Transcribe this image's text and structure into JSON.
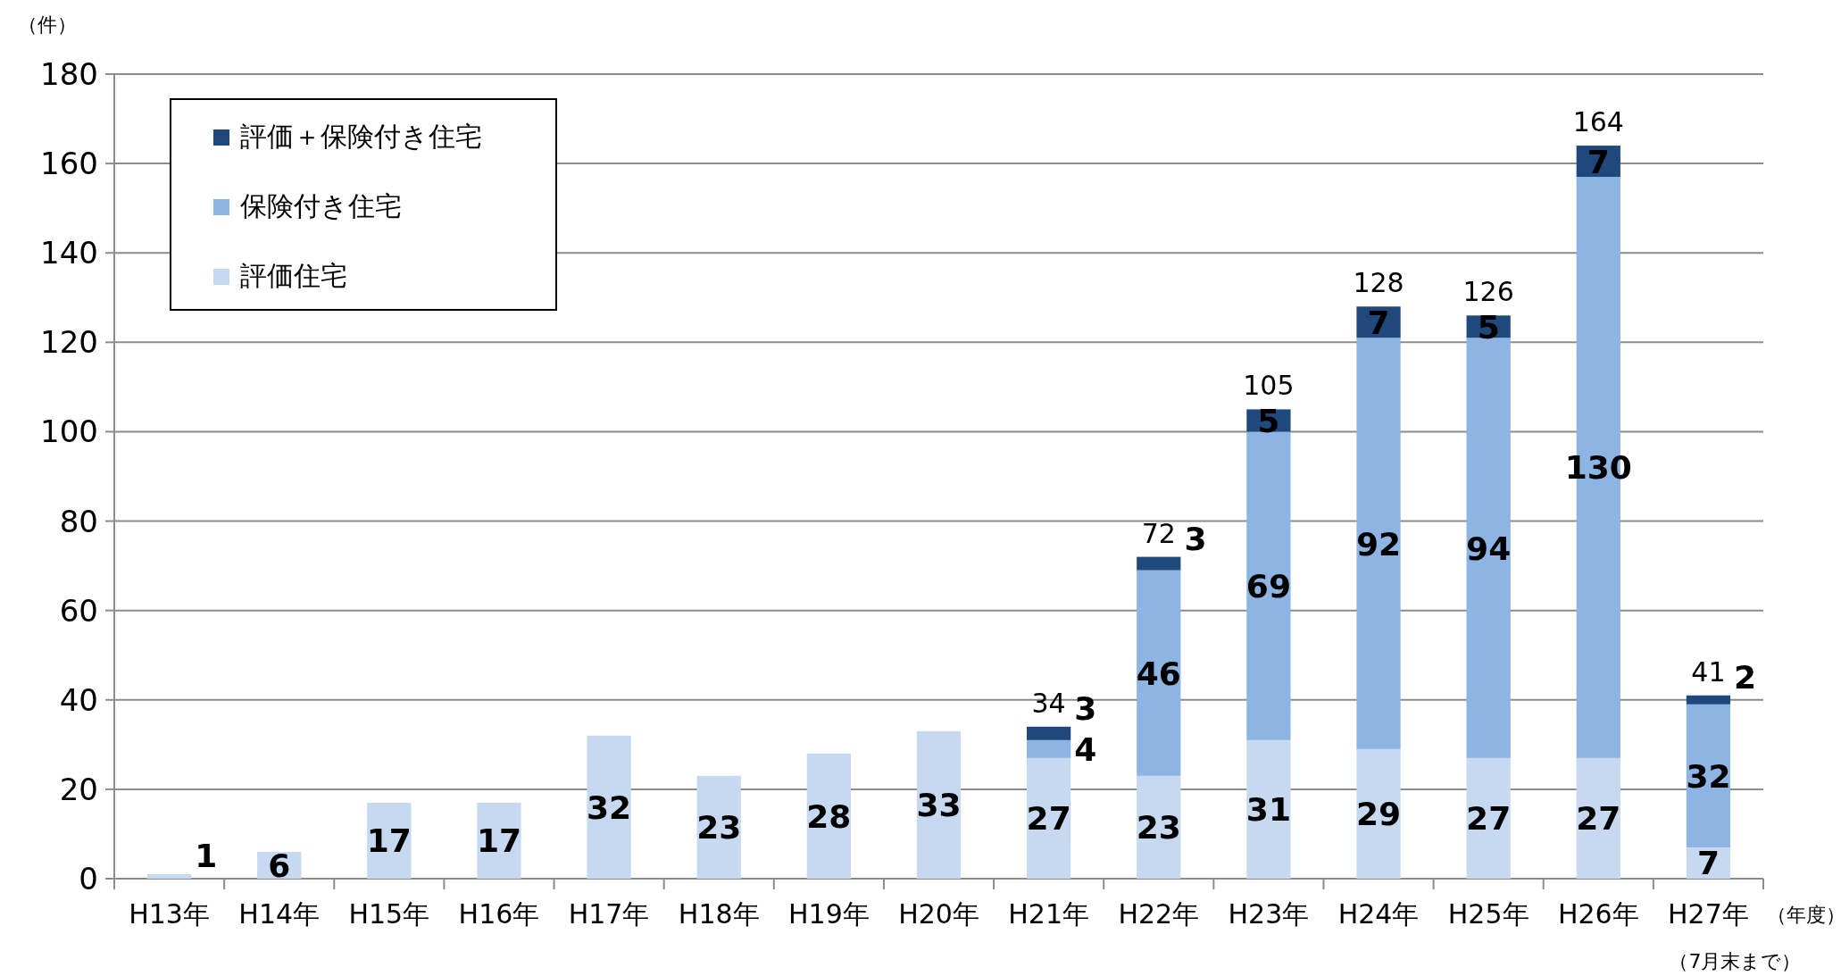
{
  "chart_data": {
    "type": "bar",
    "stacked": true,
    "ylabel": "（件）",
    "xlabel": "（年度）",
    "categories": [
      "H13年",
      "H14年",
      "H15年",
      "H16年",
      "H17年",
      "H18年",
      "H19年",
      "H20年",
      "H21年",
      "H22年",
      "H23年",
      "H24年",
      "H25年",
      "H26年",
      "H27年"
    ],
    "series": [
      {
        "name": "評価住宅",
        "color": "#c6d9f1",
        "values": [
          1,
          6,
          17,
          17,
          32,
          23,
          28,
          33,
          27,
          23,
          31,
          29,
          27,
          27,
          7
        ]
      },
      {
        "name": "保険付き住宅",
        "color": "#8eb4e3",
        "values": [
          null,
          null,
          null,
          null,
          null,
          null,
          null,
          null,
          4,
          46,
          69,
          92,
          94,
          130,
          32
        ]
      },
      {
        "name": "評価＋保険付き住宅",
        "color": "#1f497d",
        "values": [
          null,
          null,
          null,
          null,
          null,
          null,
          null,
          null,
          3,
          3,
          5,
          7,
          5,
          7,
          2
        ]
      }
    ],
    "totals": [
      null,
      null,
      null,
      null,
      null,
      null,
      null,
      null,
      "34",
      "72",
      "105",
      "128",
      "126",
      "164",
      "41"
    ],
    "data_labels": true,
    "ylim": [
      0,
      180
    ],
    "yticks": [
      0,
      20,
      40,
      60,
      80,
      100,
      120,
      140,
      160,
      180
    ],
    "grid": "y",
    "legend": "top left",
    "annotations": [
      "（7月末まで）"
    ]
  }
}
